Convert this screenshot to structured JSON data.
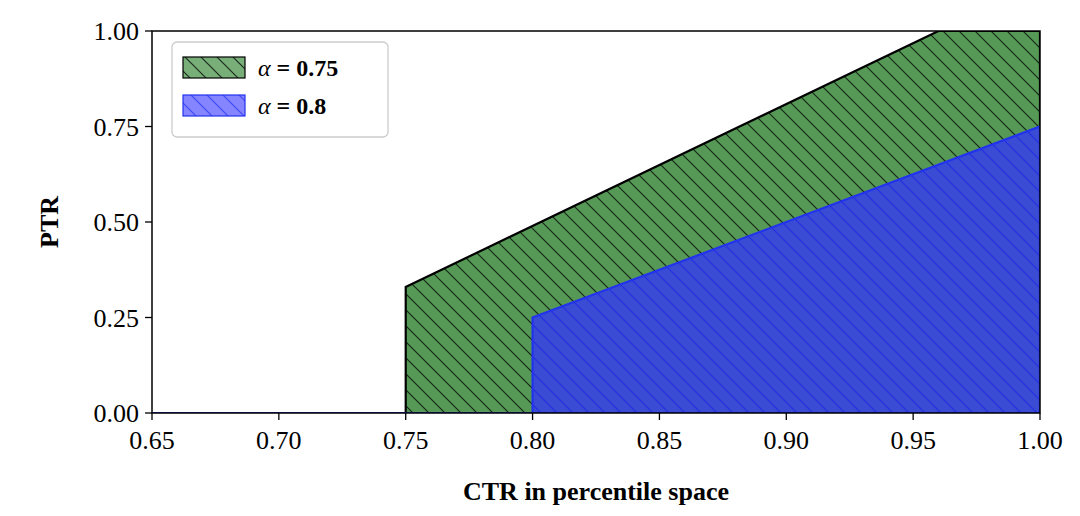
{
  "chart_data": {
    "type": "area",
    "x_label": "CTR in percentile space",
    "y_label": "PTR",
    "series": [
      {
        "name": "α = 0.75",
        "color": "#4d944d",
        "line_color": "#000000",
        "x": [
          0.65,
          0.75,
          0.75,
          0.96,
          1.0
        ],
        "values": [
          0,
          0,
          0.33,
          1.0,
          1.0
        ]
      },
      {
        "name": "α = 0.8",
        "color": "#3333ff",
        "line_color": "#2233ee",
        "x": [
          0.65,
          0.8,
          0.8,
          1.0
        ],
        "values": [
          0,
          0,
          0.25,
          0.75
        ]
      }
    ],
    "xlim": [
      0.65,
      1.0
    ],
    "ylim": [
      0,
      1.0
    ],
    "xticks": [
      0.65,
      {
        "value": 0.7,
        "label": "0.70"
      },
      0.75,
      {
        "value": 0.8,
        "label": "0.80"
      },
      0.85,
      {
        "value": 0.9,
        "label": "0.90"
      },
      0.95,
      {
        "value": 1.0,
        "label": "1.00"
      }
    ],
    "yticks": [
      {
        "value": 0,
        "label": "0.00"
      },
      {
        "value": 0.25,
        "label": "0.25"
      },
      {
        "value": 0.5,
        "label": "0.50"
      },
      {
        "value": 0.75,
        "label": "0.75"
      },
      {
        "value": 1.0,
        "label": "1.00"
      }
    ],
    "grid": false,
    "legend": "upper left"
  }
}
